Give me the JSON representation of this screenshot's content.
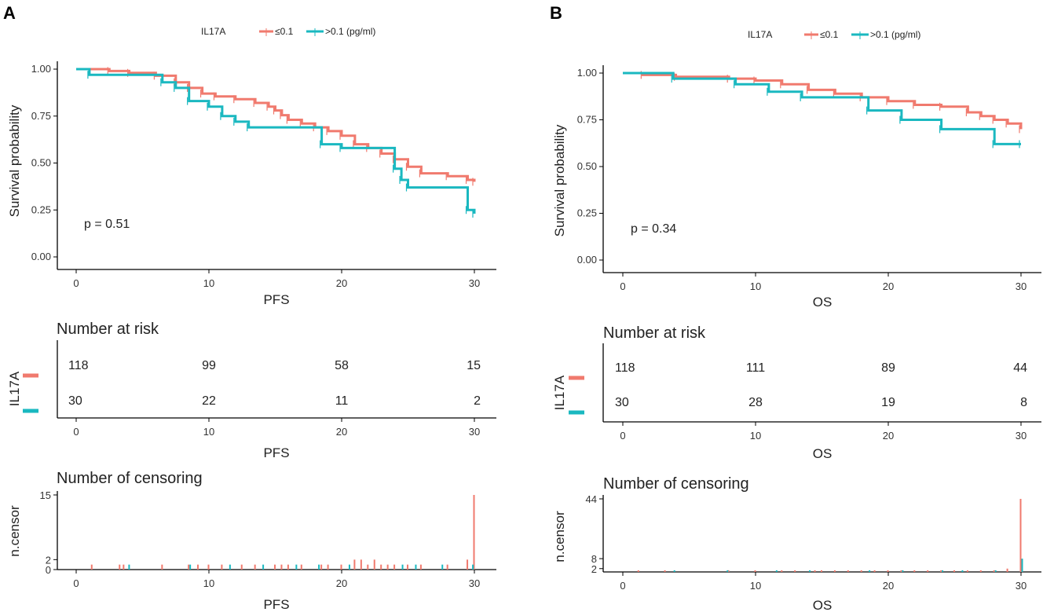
{
  "colors": {
    "low": "#F07A6E",
    "high": "#1AB8C0",
    "axis": "#000000"
  },
  "chart_data": [
    {
      "type": "line",
      "subtype": "kaplan-meier",
      "panel": "A",
      "legend": {
        "title": "IL17A",
        "labels": [
          "≤0.1",
          ">0.1 (pg/ml)"
        ]
      },
      "xlabel": "PFS",
      "ylabel": "Survival probability",
      "xlim": [
        0,
        30
      ],
      "ylim": [
        0,
        1
      ],
      "xticks": [
        "0",
        "10",
        "20",
        "30"
      ],
      "yticks": [
        "0.00",
        "0.25",
        "0.50",
        "0.75",
        "1.00"
      ],
      "p_value": "p = 0.51",
      "series": [
        {
          "name": "≤0.1",
          "color": "#F07A6E",
          "steps": [
            [
              0,
              1.0
            ],
            [
              2.5,
              0.99
            ],
            [
              4,
              0.98
            ],
            [
              6,
              0.965
            ],
            [
              7.5,
              0.93
            ],
            [
              8.5,
              0.9
            ],
            [
              9.5,
              0.87
            ],
            [
              10.5,
              0.855
            ],
            [
              12,
              0.84
            ],
            [
              13.5,
              0.82
            ],
            [
              14.5,
              0.8
            ],
            [
              15,
              0.78
            ],
            [
              15.5,
              0.755
            ],
            [
              16,
              0.73
            ],
            [
              17,
              0.71
            ],
            [
              18,
              0.69
            ],
            [
              19,
              0.67
            ],
            [
              20,
              0.645
            ],
            [
              21,
              0.6
            ],
            [
              22,
              0.58
            ],
            [
              23,
              0.55
            ],
            [
              24,
              0.52
            ],
            [
              25,
              0.48
            ],
            [
              26,
              0.445
            ],
            [
              28,
              0.43
            ],
            [
              29.5,
              0.41
            ],
            [
              30,
              0.4
            ]
          ]
        },
        {
          "name": ">0.1 (pg/ml)",
          "color": "#1AB8C0",
          "steps": [
            [
              0,
              1.0
            ],
            [
              1,
              0.97
            ],
            [
              6.5,
              0.93
            ],
            [
              7.5,
              0.9
            ],
            [
              8.5,
              0.83
            ],
            [
              10,
              0.8
            ],
            [
              11,
              0.75
            ],
            [
              12,
              0.72
            ],
            [
              13,
              0.69
            ],
            [
              18.5,
              0.6
            ],
            [
              20,
              0.58
            ],
            [
              24,
              0.47
            ],
            [
              24.5,
              0.41
            ],
            [
              25,
              0.37
            ],
            [
              29.5,
              0.25
            ],
            [
              30,
              0.23
            ]
          ]
        }
      ],
      "risk": {
        "title": "Number at risk",
        "ylabel": "IL17A",
        "xlabel": "PFS",
        "rows": [
          {
            "name": "≤0.1",
            "values": [
              "118",
              "99",
              "58",
              "15"
            ]
          },
          {
            "name": ">0.1 (pg/ml)",
            "values": [
              "30",
              "22",
              "11",
              "2"
            ]
          }
        ]
      },
      "censor": {
        "title": "Number of censoring",
        "ylabel": "n.censor",
        "xlabel": "PFS",
        "yticks": [
          "0",
          "2",
          "15"
        ],
        "ymax": 15,
        "bars_low": [
          [
            1.2,
            1
          ],
          [
            3.3,
            1
          ],
          [
            3.6,
            1
          ],
          [
            6.5,
            1
          ],
          [
            8.5,
            1
          ],
          [
            9.2,
            1
          ],
          [
            10,
            1
          ],
          [
            11,
            1
          ],
          [
            12.5,
            1
          ],
          [
            13.5,
            1
          ],
          [
            15,
            1
          ],
          [
            15.5,
            1
          ],
          [
            16,
            1
          ],
          [
            17,
            1
          ],
          [
            18.5,
            1
          ],
          [
            19,
            1
          ],
          [
            20,
            1
          ],
          [
            21,
            2
          ],
          [
            21.5,
            2
          ],
          [
            22,
            1
          ],
          [
            22.5,
            2
          ],
          [
            23,
            1
          ],
          [
            23.5,
            1
          ],
          [
            24,
            1
          ],
          [
            25,
            1
          ],
          [
            26,
            1
          ],
          [
            28,
            1
          ],
          [
            29.5,
            2
          ],
          [
            30,
            15
          ]
        ],
        "bars_high": [
          [
            3.9,
            1
          ],
          [
            8.5,
            1
          ],
          [
            11.5,
            1
          ],
          [
            14,
            1
          ],
          [
            16.5,
            1
          ],
          [
            18.2,
            1
          ],
          [
            20.5,
            1
          ],
          [
            24.5,
            1
          ],
          [
            25.5,
            1
          ],
          [
            27.5,
            1
          ],
          [
            29.8,
            1
          ]
        ]
      }
    },
    {
      "type": "line",
      "subtype": "kaplan-meier",
      "panel": "B",
      "legend": {
        "title": "IL17A",
        "labels": [
          "≤0.1",
          ">0.1 (pg/ml)"
        ]
      },
      "xlabel": "OS",
      "ylabel": "Survival probability",
      "xlim": [
        0,
        30
      ],
      "ylim": [
        0,
        1
      ],
      "xticks": [
        "0",
        "10",
        "20",
        "30"
      ],
      "yticks": [
        "0.00",
        "0.25",
        "0.50",
        "0.75",
        "1.00"
      ],
      "p_value": "p = 0.34",
      "series": [
        {
          "name": "≤0.1",
          "color": "#F07A6E",
          "steps": [
            [
              0,
              1.0
            ],
            [
              1.5,
              0.99
            ],
            [
              4,
              0.98
            ],
            [
              8,
              0.97
            ],
            [
              10,
              0.96
            ],
            [
              12,
              0.94
            ],
            [
              14,
              0.91
            ],
            [
              16,
              0.89
            ],
            [
              18,
              0.87
            ],
            [
              20,
              0.85
            ],
            [
              22,
              0.83
            ],
            [
              24,
              0.82
            ],
            [
              26,
              0.79
            ],
            [
              27,
              0.77
            ],
            [
              28,
              0.75
            ],
            [
              29,
              0.73
            ],
            [
              30,
              0.7
            ]
          ]
        },
        {
          "name": ">0.1 (pg/ml)",
          "color": "#1AB8C0",
          "steps": [
            [
              0,
              1.0
            ],
            [
              3.8,
              0.97
            ],
            [
              8.5,
              0.94
            ],
            [
              11,
              0.9
            ],
            [
              13.5,
              0.87
            ],
            [
              18.5,
              0.8
            ],
            [
              21,
              0.75
            ],
            [
              24,
              0.7
            ],
            [
              28,
              0.62
            ],
            [
              30,
              0.62
            ]
          ]
        }
      ],
      "risk": {
        "title": "Number at risk",
        "ylabel": "IL17A",
        "xlabel": "OS",
        "rows": [
          {
            "name": "≤0.1",
            "values": [
              "118",
              "111",
              "89",
              "44"
            ]
          },
          {
            "name": ">0.1 (pg/ml)",
            "values": [
              "30",
              "28",
              "19",
              "8"
            ]
          }
        ]
      },
      "censor": {
        "title": "Number of censoring",
        "ylabel": "n.censor",
        "xlabel": "OS",
        "yticks": [
          "2",
          "8",
          "44"
        ],
        "ymax": 44,
        "bars_low": [
          [
            1.2,
            1
          ],
          [
            3.2,
            1
          ],
          [
            8,
            1
          ],
          [
            10,
            1
          ],
          [
            12,
            1
          ],
          [
            13,
            1
          ],
          [
            14.5,
            1
          ],
          [
            15,
            1
          ],
          [
            16,
            1
          ],
          [
            17,
            1
          ],
          [
            18,
            1
          ],
          [
            19,
            1
          ],
          [
            20,
            1
          ],
          [
            21,
            1
          ],
          [
            22,
            1
          ],
          [
            23,
            1
          ],
          [
            24,
            1
          ],
          [
            25,
            1
          ],
          [
            26,
            1
          ],
          [
            27,
            1
          ],
          [
            28,
            1
          ],
          [
            29,
            2
          ],
          [
            30,
            44
          ]
        ],
        "bars_high": [
          [
            3.8,
            1
          ],
          [
            7.8,
            1
          ],
          [
            11.5,
            1
          ],
          [
            14,
            1
          ],
          [
            18.5,
            1
          ],
          [
            21,
            1
          ],
          [
            24,
            1
          ],
          [
            25.5,
            1
          ],
          [
            28,
            1
          ],
          [
            30,
            8
          ]
        ]
      }
    }
  ]
}
